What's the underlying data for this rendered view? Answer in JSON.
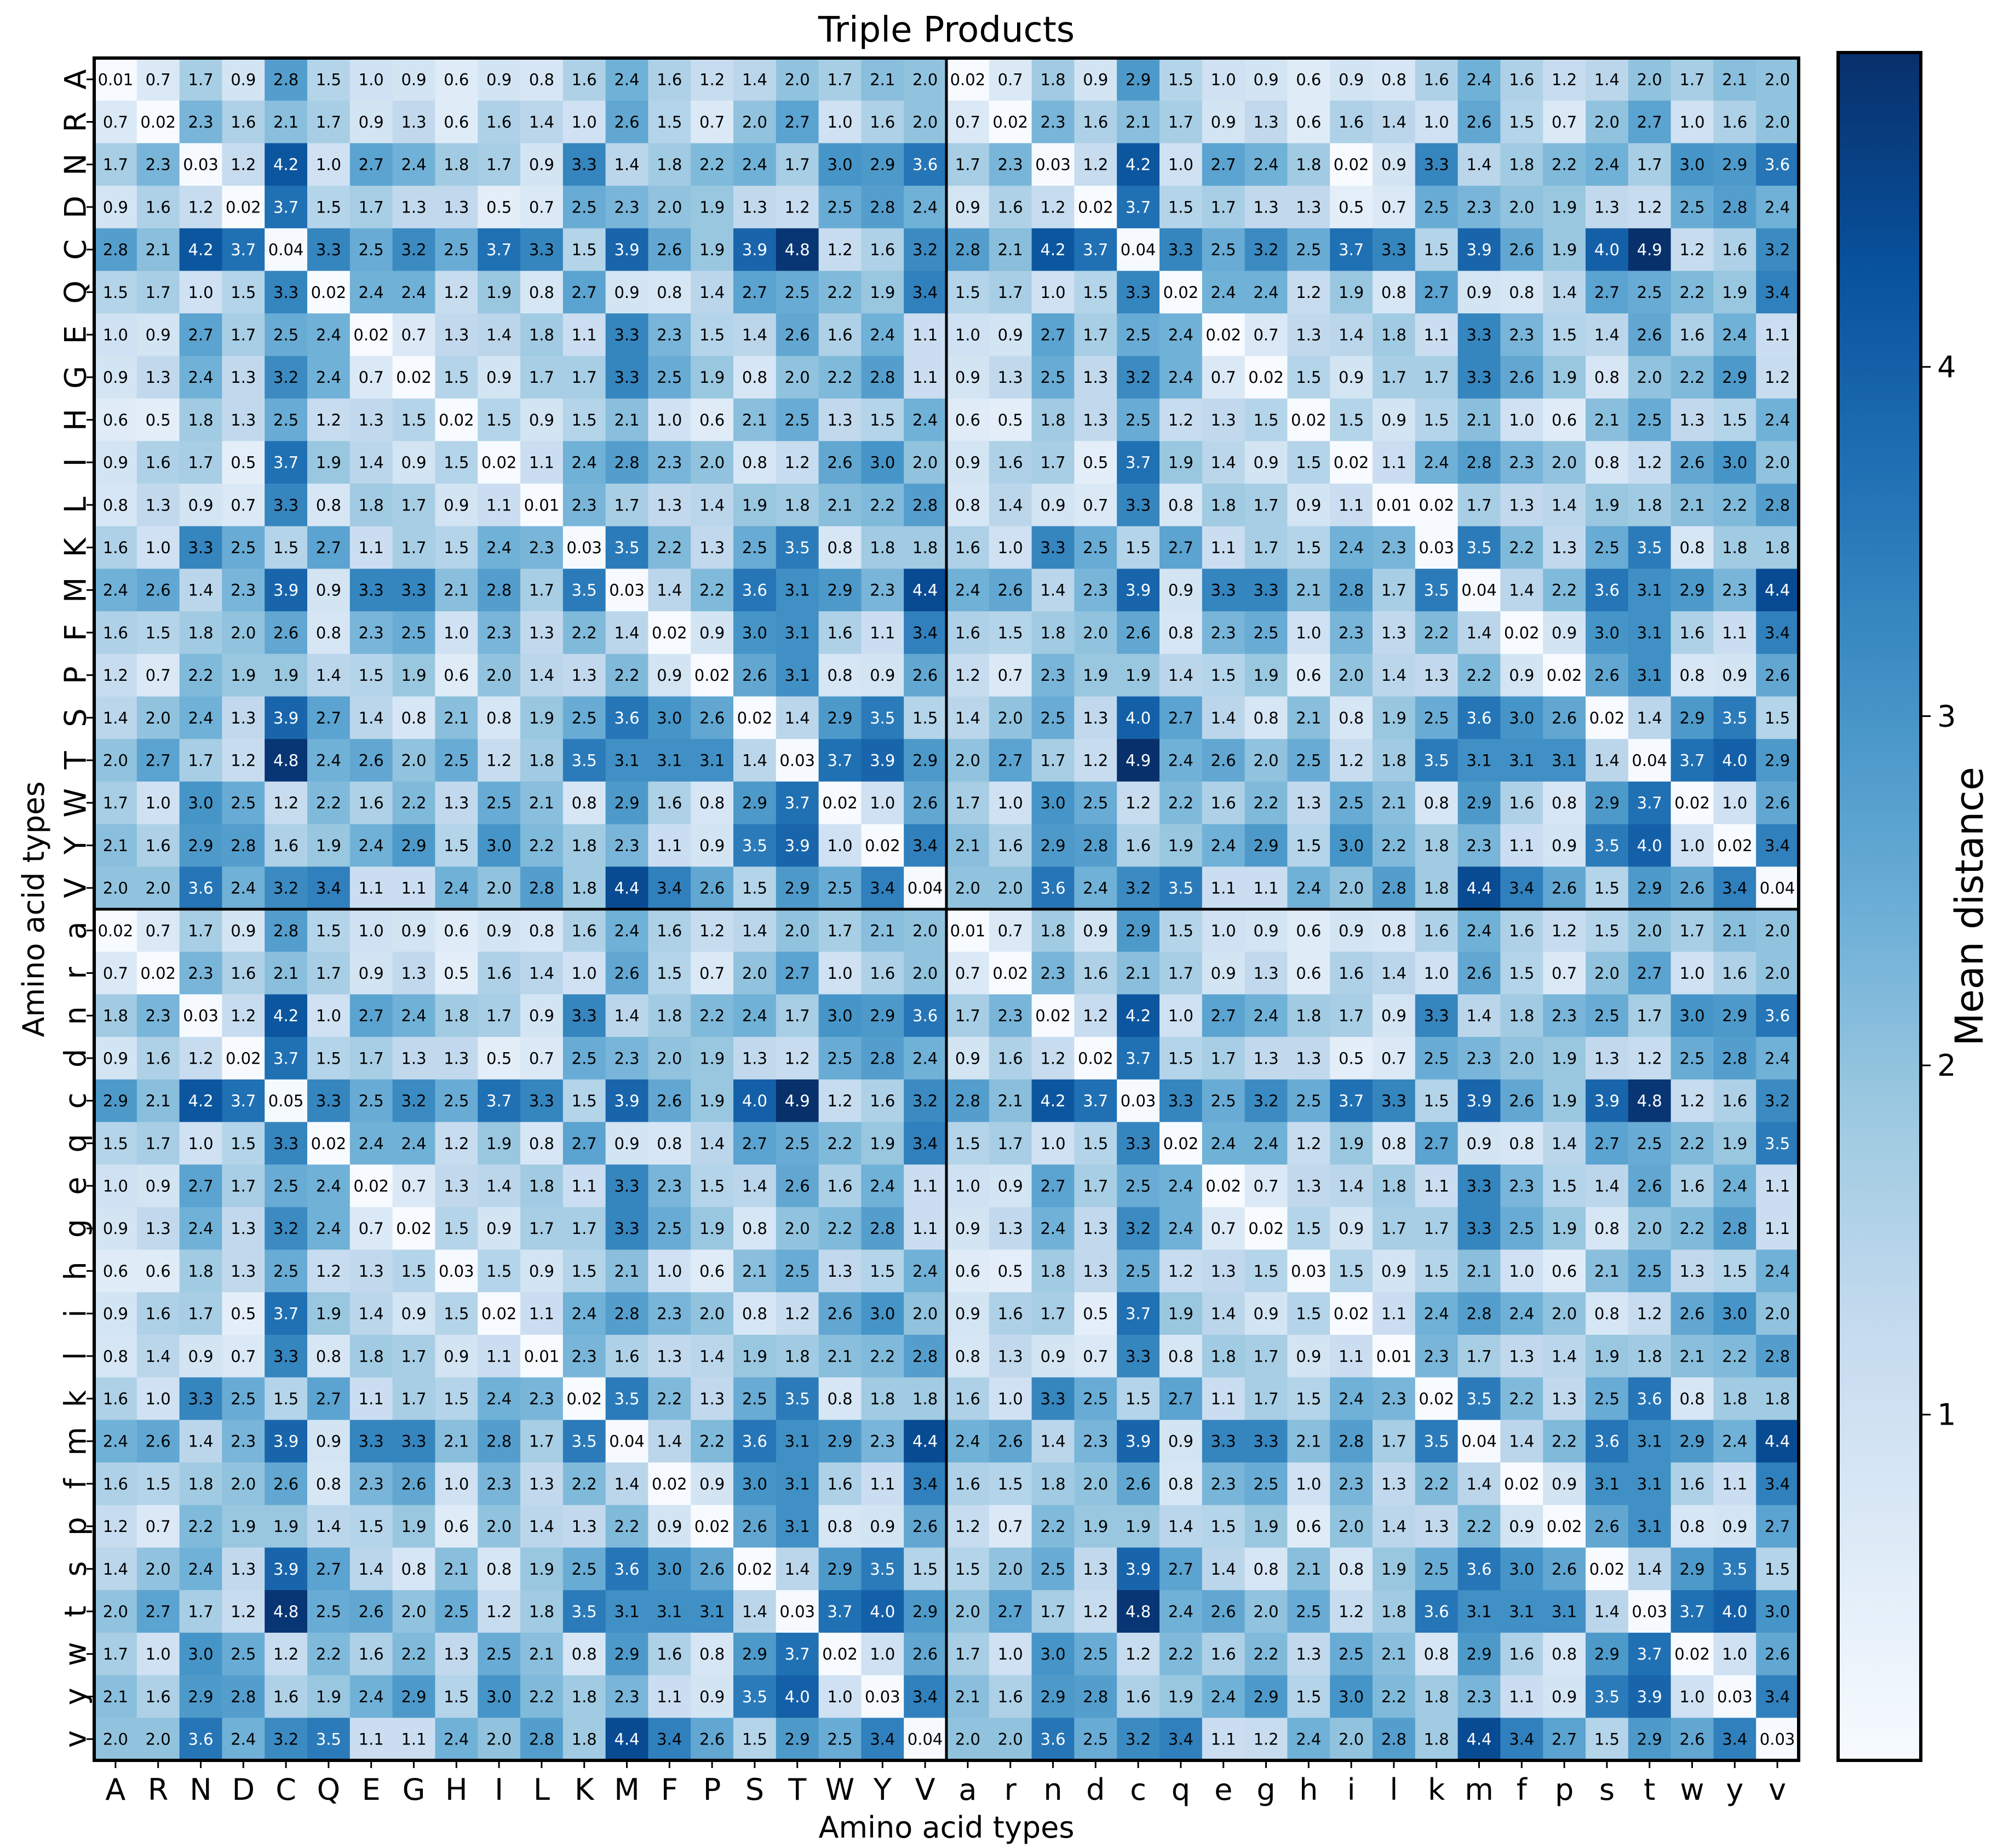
{
  "chart_data": {
    "type": "heatmap",
    "title": "Triple Products",
    "xlabel": "Amino acid types",
    "ylabel": "Amino acid types",
    "colorbar_label": "Mean distance",
    "colorbar_ticks": [
      1,
      2,
      3,
      4
    ],
    "colorbar_range": [
      0.01,
      4.9
    ],
    "colormap": "Blues",
    "colormap_stops": [
      "#f7fbff",
      "#deebf7",
      "#c6dbef",
      "#9ecae1",
      "#6baed6",
      "#4292c6",
      "#2171b5",
      "#08519c",
      "#08306b"
    ],
    "labels": [
      "A",
      "R",
      "N",
      "D",
      "C",
      "Q",
      "E",
      "G",
      "H",
      "I",
      "L",
      "K",
      "M",
      "F",
      "P",
      "S",
      "T",
      "W",
      "Y",
      "V",
      "a",
      "r",
      "n",
      "d",
      "c",
      "q",
      "e",
      "g",
      "h",
      "i",
      "l",
      "k",
      "m",
      "f",
      "p",
      "s",
      "t",
      "w",
      "y",
      "v"
    ],
    "block_values": [
      [
        "0.01",
        "0.7",
        "1.7",
        "0.9",
        "2.8",
        "1.5",
        "1.0",
        "0.9",
        "0.6",
        "0.9",
        "0.8",
        "1.6",
        "2.4",
        "1.6",
        "1.2",
        "1.4",
        "2.0",
        "1.7",
        "2.1",
        "2.0"
      ],
      [
        "0.7",
        "0.02",
        "2.3",
        "1.6",
        "2.1",
        "1.7",
        "0.9",
        "1.3",
        "0.6",
        "1.6",
        "1.4",
        "1.0",
        "2.6",
        "1.5",
        "0.7",
        "2.0",
        "2.7",
        "1.0",
        "1.6",
        "2.0"
      ],
      [
        "1.7",
        "2.3",
        "0.03",
        "1.2",
        "4.2",
        "1.0",
        "2.7",
        "2.4",
        "1.8",
        "1.7",
        "0.9",
        "3.3",
        "1.4",
        "1.8",
        "2.2",
        "2.4",
        "1.7",
        "3.0",
        "2.9",
        "3.6"
      ],
      [
        "0.9",
        "1.6",
        "1.2",
        "0.02",
        "3.7",
        "1.5",
        "1.7",
        "1.3",
        "1.3",
        "0.5",
        "0.7",
        "2.5",
        "2.3",
        "2.0",
        "1.9",
        "1.3",
        "1.2",
        "2.5",
        "2.8",
        "2.4"
      ],
      [
        "2.8",
        "2.1",
        "4.2",
        "3.7",
        "0.04",
        "3.3",
        "2.5",
        "3.2",
        "2.5",
        "3.7",
        "3.3",
        "1.5",
        "3.9",
        "2.6",
        "1.9",
        "3.9",
        "4.8",
        "1.2",
        "1.6",
        "3.2"
      ],
      [
        "1.5",
        "1.7",
        "1.0",
        "1.5",
        "3.3",
        "0.02",
        "2.4",
        "2.4",
        "1.2",
        "1.9",
        "0.8",
        "2.7",
        "0.9",
        "0.8",
        "1.4",
        "2.7",
        "2.5",
        "2.2",
        "1.9",
        "3.4"
      ],
      [
        "1.0",
        "0.9",
        "2.7",
        "1.7",
        "2.5",
        "2.4",
        "0.02",
        "0.7",
        "1.3",
        "1.4",
        "1.8",
        "1.1",
        "3.3",
        "2.3",
        "1.5",
        "1.4",
        "2.6",
        "1.6",
        "2.4",
        "1.1"
      ],
      [
        "0.9",
        "1.3",
        "2.4",
        "1.3",
        "3.2",
        "2.4",
        "0.7",
        "0.02",
        "1.5",
        "0.9",
        "1.7",
        "1.7",
        "3.3",
        "2.5",
        "1.9",
        "0.8",
        "2.0",
        "2.2",
        "2.8",
        "1.1"
      ],
      [
        "0.6",
        "0.5",
        "1.8",
        "1.3",
        "2.5",
        "1.2",
        "1.3",
        "1.5",
        "0.02",
        "1.5",
        "0.9",
        "1.5",
        "2.1",
        "1.0",
        "0.6",
        "2.1",
        "2.5",
        "1.3",
        "1.5",
        "2.4"
      ],
      [
        "0.9",
        "1.6",
        "1.7",
        "0.5",
        "3.7",
        "1.9",
        "1.4",
        "0.9",
        "1.5",
        "0.02",
        "1.1",
        "2.4",
        "2.8",
        "2.3",
        "2.0",
        "0.8",
        "1.2",
        "2.6",
        "3.0",
        "2.0"
      ],
      [
        "0.8",
        "1.3",
        "0.9",
        "0.7",
        "3.3",
        "0.8",
        "1.8",
        "1.7",
        "0.9",
        "1.1",
        "0.01",
        "2.3",
        "1.7",
        "1.3",
        "1.4",
        "1.9",
        "1.8",
        "2.1",
        "2.2",
        "2.8"
      ],
      [
        "1.6",
        "1.0",
        "3.3",
        "2.5",
        "1.5",
        "2.7",
        "1.1",
        "1.7",
        "1.5",
        "2.4",
        "2.3",
        "0.03",
        "3.5",
        "2.2",
        "1.3",
        "2.5",
        "3.5",
        "0.8",
        "1.8",
        "1.8"
      ],
      [
        "2.4",
        "2.6",
        "1.4",
        "2.3",
        "3.9",
        "0.9",
        "3.3",
        "3.3",
        "2.1",
        "2.8",
        "1.7",
        "3.5",
        "0.03",
        "1.4",
        "2.2",
        "3.6",
        "3.1",
        "2.9",
        "2.3",
        "4.4"
      ],
      [
        "1.6",
        "1.5",
        "1.8",
        "2.0",
        "2.6",
        "0.8",
        "2.3",
        "2.5",
        "1.0",
        "2.3",
        "1.3",
        "2.2",
        "1.4",
        "0.02",
        "0.9",
        "3.0",
        "3.1",
        "1.6",
        "1.1",
        "3.4"
      ],
      [
        "1.2",
        "0.7",
        "2.2",
        "1.9",
        "1.9",
        "1.4",
        "1.5",
        "1.9",
        "0.6",
        "2.0",
        "1.4",
        "1.3",
        "2.2",
        "0.9",
        "0.02",
        "2.6",
        "3.1",
        "0.8",
        "0.9",
        "2.6"
      ],
      [
        "1.4",
        "2.0",
        "2.4",
        "1.3",
        "3.9",
        "2.7",
        "1.4",
        "0.8",
        "2.1",
        "0.8",
        "1.9",
        "2.5",
        "3.6",
        "3.0",
        "2.6",
        "0.02",
        "1.4",
        "2.9",
        "3.5",
        "1.5"
      ],
      [
        "2.0",
        "2.7",
        "1.7",
        "1.2",
        "4.8",
        "2.4",
        "2.6",
        "2.0",
        "2.5",
        "1.2",
        "1.8",
        "3.5",
        "3.1",
        "3.1",
        "3.1",
        "1.4",
        "0.03",
        "3.7",
        "3.9",
        "2.9"
      ],
      [
        "1.7",
        "1.0",
        "3.0",
        "2.5",
        "1.2",
        "2.2",
        "1.6",
        "2.2",
        "1.3",
        "2.5",
        "2.1",
        "0.8",
        "2.9",
        "1.6",
        "0.8",
        "2.9",
        "3.7",
        "0.02",
        "1.0",
        "2.6"
      ],
      [
        "2.1",
        "1.6",
        "2.9",
        "2.8",
        "1.6",
        "1.9",
        "2.4",
        "2.9",
        "1.5",
        "3.0",
        "2.2",
        "1.8",
        "2.3",
        "1.1",
        "0.9",
        "3.5",
        "3.9",
        "1.0",
        "0.02",
        "3.4"
      ],
      [
        "2.0",
        "2.0",
        "3.6",
        "2.4",
        "3.2",
        "3.4",
        "1.1",
        "1.1",
        "2.4",
        "2.0",
        "2.8",
        "1.8",
        "4.4",
        "3.4",
        "2.6",
        "1.5",
        "2.9",
        "2.5",
        "3.4",
        "0.04"
      ]
    ],
    "overrides": {
      "0,20": "0.02",
      "0,22": "1.8",
      "0,24": "2.9",
      "2,29": "0.02",
      "4,35": "4.0",
      "4,36": "4.9",
      "6,20": "1.0",
      "7,22": "2.5",
      "7,33": "2.6",
      "7,38": "2.9",
      "7,39": "1.2",
      "10,21": "1.4",
      "10,31": "0.02",
      "12,32": "0.04",
      "13,36": "3.1",
      "14,22": "2.3",
      "15,22": "2.5",
      "15,24": "4.0",
      "16,24": "4.9",
      "16,36": "0.04",
      "16,38": "4.0",
      "18,36": "4.0",
      "18,39": "3.4",
      "19,25": "3.5",
      "19,37": "2.6",
      "20,0": "0.02",
      "20,20": "0.01",
      "20,22": "1.8",
      "20,24": "2.9",
      "20,35": "1.5",
      "21,8": "0.5",
      "22,0": "1.8",
      "22,2": "0.03",
      "22,22": "0.02",
      "22,34": "2.3",
      "22,35": "2.5",
      "24,0": "2.9",
      "24,4": "0.05",
      "24,15": "4.0",
      "24,16": "4.9",
      "24,24": "0.03",
      "25,39": "3.5",
      "27,7": "0.02",
      "27,33": "2.5",
      "28,1": "0.6",
      "28,8": "0.03",
      "28,28": "0.03",
      "29,33": "2.4",
      "30,1": "1.4",
      "30,12": "1.6",
      "31,11": "0.02",
      "31,31": "0.02",
      "31,36": "3.6",
      "32,12": "0.04",
      "32,32": "0.04",
      "32,38": "2.4",
      "33,7": "2.6",
      "33,33": "0.02",
      "33,35": "3.1",
      "34,39": "2.7",
      "35,20": "1.5",
      "35,22": "2.5",
      "36,5": "2.5",
      "36,18": "4.0",
      "36,20": "2.0",
      "36,31": "3.6",
      "36,36": "0.03",
      "36,38": "4.0",
      "36,39": "3.0",
      "37,20": "1.7",
      "38,16": "4.0",
      "38,18": "0.03",
      "38,27": "2.9",
      "38,38": "0.03",
      "39,5": "3.5",
      "39,23": "2.5",
      "39,27": "1.2",
      "39,34": "2.7",
      "39,37": "2.6",
      "39,39": "0.03"
    }
  }
}
